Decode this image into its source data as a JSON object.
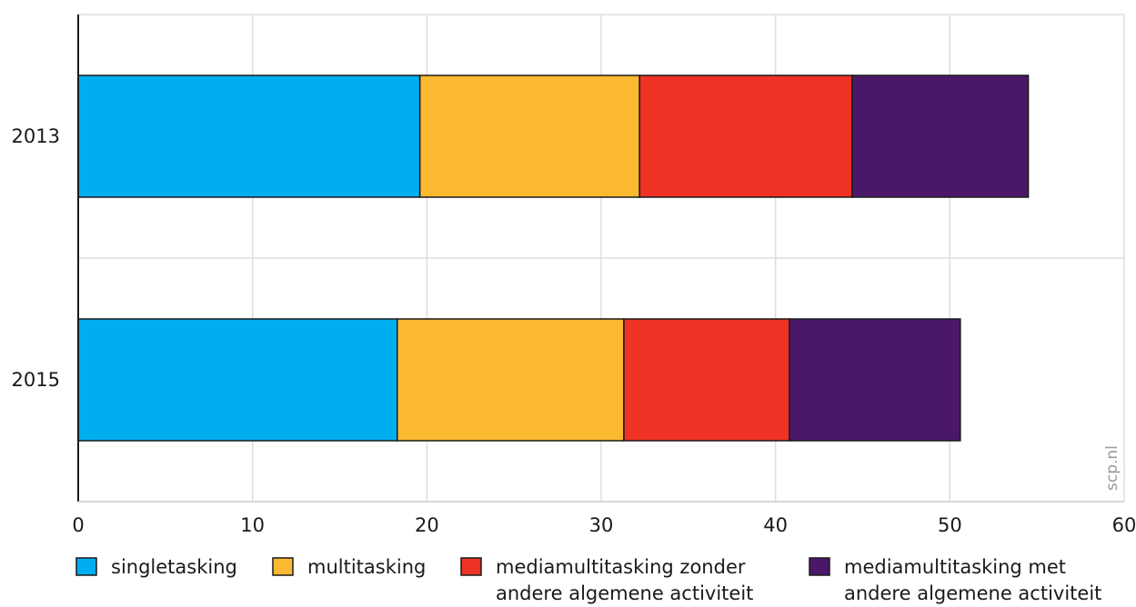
{
  "chart_data": {
    "type": "bar",
    "orientation": "horizontal",
    "stacked": true,
    "categories": [
      "2013",
      "2015"
    ],
    "series": [
      {
        "name": "singletasking",
        "color": "#00AEEF",
        "values": [
          19.6,
          18.3
        ]
      },
      {
        "name": "multitasking",
        "color": "#FBB931",
        "values": [
          12.6,
          13.0
        ]
      },
      {
        "name": "mediamultitasking zonder andere algemene activiteit",
        "color": "#EE3224",
        "values": [
          12.2,
          9.5
        ]
      },
      {
        "name": "mediamultitasking met andere algemene activiteit",
        "color": "#4B1869",
        "values": [
          10.1,
          9.8
        ]
      }
    ],
    "xlim": [
      0,
      60
    ],
    "xticks": [
      "0",
      "10",
      "20",
      "30",
      "40",
      "50",
      "60"
    ],
    "title": "",
    "xlabel": "",
    "ylabel": "",
    "grid": true,
    "legend_position": "bottom"
  },
  "legend": {
    "items": [
      {
        "line1": "singletasking",
        "line2": ""
      },
      {
        "line1": "multitasking",
        "line2": ""
      },
      {
        "line1": "mediamultitasking zonder",
        "line2": "andere algemene activiteit"
      },
      {
        "line1": "mediamultitasking met",
        "line2": "andere algemene activiteit"
      }
    ]
  },
  "watermark": "scp.nl"
}
